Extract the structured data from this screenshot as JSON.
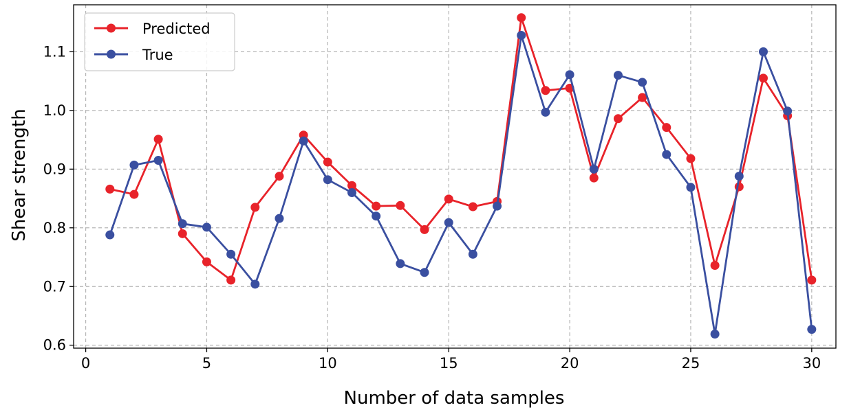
{
  "chart_data": {
    "type": "line",
    "title": "",
    "xlabel": "Number of data samples",
    "ylabel": "Shear strength",
    "xlim": [
      -0.5,
      31
    ],
    "ylim": [
      0.595,
      1.18
    ],
    "xticks": [
      0,
      5,
      10,
      15,
      20,
      25,
      30
    ],
    "yticks": [
      0.6,
      0.7,
      0.8,
      0.9,
      1.0,
      1.1
    ],
    "xtick_labels": [
      "0",
      "5",
      "10",
      "15",
      "20",
      "25",
      "30"
    ],
    "ytick_labels": [
      "0.6",
      "0.7",
      "0.8",
      "0.9",
      "1.0",
      "1.1"
    ],
    "grid": true,
    "legend_position": "top-left",
    "x": [
      1,
      2,
      3,
      4,
      5,
      6,
      7,
      8,
      9,
      10,
      11,
      12,
      13,
      14,
      15,
      16,
      17,
      18,
      19,
      20,
      21,
      22,
      23,
      24,
      25,
      26,
      27,
      28,
      29,
      30
    ],
    "series": [
      {
        "name": "Predicted",
        "color": "#e8232a",
        "values": [
          0.866,
          0.857,
          0.951,
          0.79,
          0.742,
          0.711,
          0.835,
          0.888,
          0.958,
          0.912,
          0.872,
          0.837,
          0.838,
          0.797,
          0.849,
          0.836,
          0.845,
          1.158,
          1.034,
          1.038,
          0.885,
          0.986,
          1.022,
          0.971,
          0.918,
          0.736,
          0.87,
          1.055,
          0.991,
          0.711
        ]
      },
      {
        "name": "True",
        "color": "#3a4fa0",
        "values": [
          0.788,
          0.907,
          0.915,
          0.807,
          0.801,
          0.755,
          0.704,
          0.816,
          0.948,
          0.882,
          0.86,
          0.82,
          0.739,
          0.724,
          0.809,
          0.755,
          0.837,
          1.128,
          0.997,
          1.061,
          0.9,
          1.06,
          1.048,
          0.925,
          0.869,
          0.619,
          0.888,
          1.1,
          0.999,
          0.627
        ]
      }
    ]
  }
}
